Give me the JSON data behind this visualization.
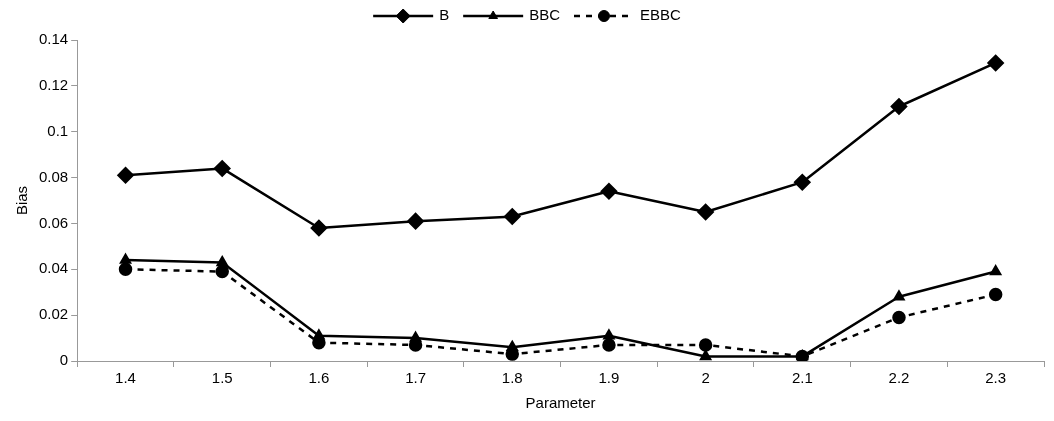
{
  "chart_data": {
    "type": "line",
    "xlabel": "Parameter",
    "ylabel": "Bias",
    "categories": [
      "1.4",
      "1.5",
      "1.6",
      "1.7",
      "1.8",
      "1.9",
      "2",
      "2.1",
      "2.2",
      "2.3"
    ],
    "series": [
      {
        "name": "B",
        "color": "#000000",
        "marker": "diamond",
        "line_style": "solid",
        "values": [
          0.081,
          0.084,
          0.058,
          0.061,
          0.063,
          0.074,
          0.065,
          0.078,
          0.111,
          0.13
        ]
      },
      {
        "name": "BBC",
        "color": "#000000",
        "marker": "triangle",
        "line_style": "solid",
        "values": [
          0.044,
          0.043,
          0.011,
          0.01,
          0.006,
          0.011,
          0.002,
          0.002,
          0.028,
          0.039
        ]
      },
      {
        "name": "EBBC",
        "color": "#000000",
        "marker": "circle",
        "line_style": "dashed",
        "values": [
          0.04,
          0.039,
          0.008,
          0.007,
          0.003,
          0.007,
          0.007,
          0.002,
          0.019,
          0.029
        ]
      }
    ],
    "ylim": [
      0,
      0.14
    ],
    "yticks": [
      0,
      0.02,
      0.04,
      0.06,
      0.08,
      0.1,
      0.12,
      0.14
    ],
    "grid": false,
    "legend": "top"
  }
}
